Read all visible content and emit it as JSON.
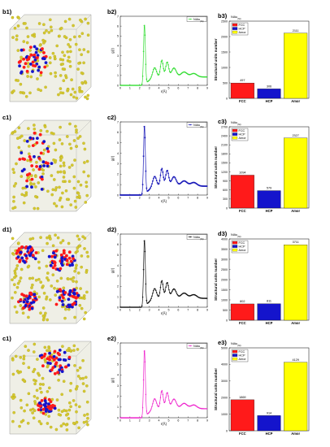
{
  "colors": {
    "fcc": "#ff1a1a",
    "hcp": "#1414cc",
    "amor": "#ffff00",
    "atom": "#d4c830"
  },
  "rows": [
    {
      "sim_label": "b1)",
      "rdf": {
        "panel_label": "b2)",
        "legend": "NiAu",
        "legend_sub": "(Ni)",
        "color": "#33dd33",
        "marker": "circle",
        "peak": 6.1,
        "ylabel": "g(r)",
        "xlabel": "r(Å)",
        "xticks": [
          "0",
          "1",
          "2",
          "3",
          "4",
          "5",
          "6",
          "7",
          "8",
          "9"
        ],
        "yticks": [
          "0",
          "1",
          "2",
          "3",
          "4",
          "5",
          "6",
          "7"
        ]
      },
      "bars": {
        "panel_label": "b3)",
        "legend_title": "NiAu",
        "legend_title_sub": "(Ni)",
        "legend": [
          "FCC",
          "HCP",
          "Amor"
        ],
        "ylabel": "Structural units number",
        "categories": [
          "FCC",
          "HCP",
          "Amor"
        ],
        "values": [
          497,
          306,
          2111
        ],
        "ylim": [
          0,
          2500
        ],
        "yticks": [
          "0",
          "500",
          "1000",
          "1500",
          "2000",
          "2500"
        ]
      }
    },
    {
      "sim_label": "c1)",
      "rdf": {
        "panel_label": "c2)",
        "legend": "NiAu",
        "legend_sub": "(Ni)",
        "color": "#1818b8",
        "marker": "square",
        "peak": 6.6,
        "ylabel": "g(r)",
        "xlabel": "r(Å)",
        "xticks": [
          "0",
          "1",
          "2",
          "3",
          "4",
          "5",
          "6",
          "7",
          "8",
          "9"
        ],
        "yticks": [
          "0",
          "1",
          "2",
          "3",
          "4",
          "5",
          "6",
          "7"
        ]
      },
      "bars": {
        "panel_label": "c3)",
        "legend_title": "NiAu",
        "legend_title_sub": "(Ni)",
        "legend": [
          "FCC",
          "HCP",
          "Amor"
        ],
        "ylabel": "Structural units number",
        "categories": [
          "FCC",
          "HCP",
          "Amor"
        ],
        "values": [
          1094,
          579,
          2327
        ],
        "ylim": [
          0,
          2700
        ],
        "yticks": [
          "0",
          "300",
          "600",
          "900",
          "1200",
          "1500",
          "1800",
          "2100",
          "2400",
          "2700"
        ]
      }
    },
    {
      "sim_label": "d1)",
      "rdf": {
        "panel_label": "d2)",
        "legend": "NiAu",
        "legend_sub": "(Ni)",
        "color": "#111111",
        "marker": "circle",
        "peak": 6.4,
        "ylabel": "g(r)",
        "xlabel": "r(Å)",
        "xticks": [
          "0",
          "1",
          "2",
          "3",
          "4",
          "5",
          "6",
          "7",
          "8",
          "9"
        ],
        "yticks": [
          "0",
          "1",
          "2",
          "3",
          "4",
          "5",
          "6",
          "7"
        ]
      },
      "bars": {
        "panel_label": "d3)",
        "legend_title": "NiAu",
        "legend_title_sub": "(Ni)",
        "legend": [
          "FCC",
          "HCP",
          "Amor"
        ],
        "ylabel": "Structural units number",
        "categories": [
          "FCC",
          "HCP",
          "Amor"
        ],
        "values": [
          802,
          811,
          3711
        ],
        "ylim": [
          0,
          4000
        ],
        "yticks": [
          "0",
          "500",
          "1000",
          "1500",
          "2000",
          "2500",
          "3000",
          "3500",
          "4000"
        ]
      }
    },
    {
      "sim_label": "c1)",
      "rdf": {
        "panel_label": "e2)",
        "legend": "NiAu",
        "legend_sub": "(Ni)",
        "color": "#ee22cc",
        "marker": "triangle",
        "peak": 6.3,
        "ylabel": "g(r)",
        "xlabel": "r(Å)",
        "xticks": [
          "0",
          "1",
          "2",
          "3",
          "4",
          "5",
          "6",
          "7",
          "8",
          "9"
        ],
        "yticks": [
          "0",
          "1",
          "2",
          "3",
          "4",
          "5",
          "6",
          "7"
        ]
      },
      "bars": {
        "panel_label": "e3)",
        "legend_title": "NiAu",
        "legend_title_sub": "(Ni)",
        "legend": [
          "FCC",
          "HCP",
          "Amor"
        ],
        "ylabel": "Structural units number",
        "categories": [
          "FCC",
          "HCP",
          "Amor"
        ],
        "values": [
          1869,
          914,
          4129
        ],
        "ylim": [
          0,
          5000
        ],
        "yticks": [
          "0",
          "1000",
          "2000",
          "3000",
          "4000",
          "5000"
        ]
      }
    }
  ],
  "chart_data": [
    {
      "type": "line",
      "panel": "b2)",
      "series": [
        {
          "name": "NiAu(Ni)",
          "x": [
            0,
            2.2,
            2.5,
            3.0,
            3.5,
            4.2,
            4.8,
            5.5,
            6.5,
            7.5,
            8.5,
            9
          ],
          "y": [
            0,
            0,
            6.1,
            1.0,
            1.3,
            2.2,
            1.5,
            1.8,
            1.3,
            1.6,
            1.4,
            1.5
          ]
        }
      ],
      "xlabel": "r(Å)",
      "ylabel": "g(r)",
      "xlim": [
        0,
        9
      ],
      "ylim": [
        0,
        7
      ]
    },
    {
      "type": "bar",
      "panel": "b3)",
      "categories": [
        "FCC",
        "HCP",
        "Amor"
      ],
      "values": [
        497,
        306,
        2111
      ],
      "ylabel": "Structural units number",
      "ylim": [
        0,
        2500
      ]
    },
    {
      "type": "line",
      "panel": "c2)",
      "series": [
        {
          "name": "NiAu(Ni)",
          "x": [
            0,
            2.2,
            2.5,
            3.0,
            3.5,
            4.2,
            4.8,
            5.5,
            6.5,
            7.5,
            8.5,
            9
          ],
          "y": [
            0,
            0,
            6.6,
            1.0,
            1.3,
            2.3,
            1.5,
            1.9,
            1.3,
            1.6,
            1.4,
            1.5
          ]
        }
      ],
      "xlabel": "r(Å)",
      "ylabel": "g(r)",
      "xlim": [
        0,
        9
      ],
      "ylim": [
        0,
        7
      ]
    },
    {
      "type": "bar",
      "panel": "c3)",
      "categories": [
        "FCC",
        "HCP",
        "Amor"
      ],
      "values": [
        1094,
        579,
        2327
      ],
      "ylabel": "Structural units number",
      "ylim": [
        0,
        2700
      ]
    },
    {
      "type": "line",
      "panel": "d2)",
      "series": [
        {
          "name": "NiAu(Ni)",
          "x": [
            0,
            2.2,
            2.5,
            3.0,
            3.5,
            4.2,
            4.8,
            5.5,
            6.5,
            7.5,
            8.5,
            9
          ],
          "y": [
            0,
            0,
            6.4,
            1.0,
            1.3,
            2.2,
            1.5,
            1.8,
            1.3,
            1.6,
            1.4,
            1.5
          ]
        }
      ],
      "xlabel": "r(Å)",
      "ylabel": "g(r)",
      "xlim": [
        0,
        9
      ],
      "ylim": [
        0,
        7
      ]
    },
    {
      "type": "bar",
      "panel": "d3)",
      "categories": [
        "FCC",
        "HCP",
        "Amor"
      ],
      "values": [
        802,
        811,
        3711
      ],
      "ylabel": "Structural units number",
      "ylim": [
        0,
        4000
      ]
    },
    {
      "type": "line",
      "panel": "e2)",
      "series": [
        {
          "name": "NiAu(Ni)",
          "x": [
            0,
            2.2,
            2.5,
            3.0,
            3.5,
            4.2,
            4.8,
            5.5,
            6.5,
            7.5,
            8.5,
            9
          ],
          "y": [
            0,
            0,
            6.3,
            1.0,
            1.3,
            2.2,
            1.5,
            1.8,
            1.3,
            1.6,
            1.4,
            1.5
          ]
        }
      ],
      "xlabel": "r(Å)",
      "ylabel": "g(r)",
      "xlim": [
        0,
        9
      ],
      "ylim": [
        0,
        7
      ]
    },
    {
      "type": "bar",
      "panel": "e3)",
      "categories": [
        "FCC",
        "HCP",
        "Amor"
      ],
      "values": [
        1869,
        914,
        4129
      ],
      "ylabel": "Structural units number",
      "ylim": [
        0,
        5000
      ]
    }
  ]
}
